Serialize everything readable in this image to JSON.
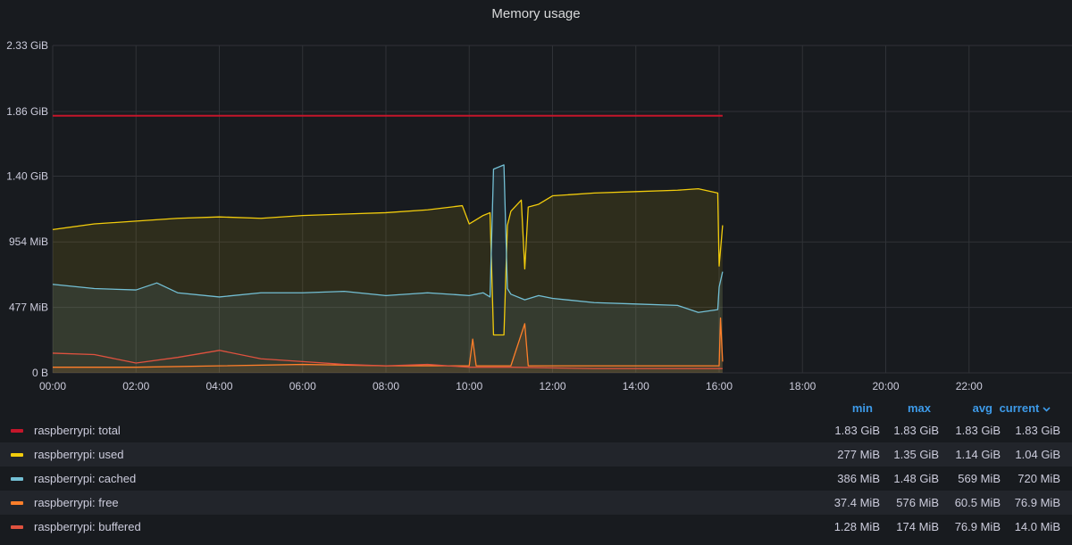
{
  "panel": {
    "title": "Memory usage"
  },
  "chart_data": {
    "type": "area",
    "title": "Memory usage",
    "x_domain": [
      "00:00",
      "24:00"
    ],
    "x_ticks": [
      "00:00",
      "02:00",
      "04:00",
      "06:00",
      "08:00",
      "10:00",
      "12:00",
      "14:00",
      "16:00",
      "18:00",
      "20:00",
      "22:00"
    ],
    "y_range_gib": [
      0,
      2.33
    ],
    "y_ticks": [
      {
        "value": 0,
        "label": "0 B"
      },
      {
        "value": 0.466,
        "label": "477 MiB"
      },
      {
        "value": 0.932,
        "label": "954 MiB"
      },
      {
        "value": 1.4,
        "label": "1.40 GiB"
      },
      {
        "value": 1.86,
        "label": "1.86 GiB"
      },
      {
        "value": 2.33,
        "label": "2.33 GiB"
      }
    ],
    "grid": true,
    "series": [
      {
        "name": "raspberrypi: total",
        "color": "#c4162a",
        "fill": false,
        "points": [
          [
            "00:00",
            1.83
          ],
          [
            "16:05",
            1.83
          ]
        ]
      },
      {
        "name": "raspberrypi: used",
        "color": "#f2cc0c",
        "fill": true,
        "points": [
          [
            "00:00",
            1.02
          ],
          [
            "01:00",
            1.06
          ],
          [
            "02:00",
            1.08
          ],
          [
            "03:00",
            1.1
          ],
          [
            "04:00",
            1.11
          ],
          [
            "05:00",
            1.1
          ],
          [
            "06:00",
            1.12
          ],
          [
            "07:00",
            1.13
          ],
          [
            "08:00",
            1.14
          ],
          [
            "09:00",
            1.16
          ],
          [
            "09:50",
            1.19
          ],
          [
            "10:00",
            1.06
          ],
          [
            "10:20",
            1.12
          ],
          [
            "10:30",
            1.14
          ],
          [
            "10:35",
            0.27
          ],
          [
            "10:50",
            0.27
          ],
          [
            "10:55",
            1.05
          ],
          [
            "11:00",
            1.15
          ],
          [
            "11:15",
            1.23
          ],
          [
            "11:20",
            0.74
          ],
          [
            "11:25",
            1.18
          ],
          [
            "11:40",
            1.2
          ],
          [
            "12:00",
            1.26
          ],
          [
            "13:00",
            1.28
          ],
          [
            "14:00",
            1.29
          ],
          [
            "15:00",
            1.3
          ],
          [
            "15:30",
            1.31
          ],
          [
            "15:58",
            1.28
          ],
          [
            "16:00",
            0.76
          ],
          [
            "16:05",
            1.05
          ]
        ]
      },
      {
        "name": "raspberrypi: cached",
        "color": "#73bfd4",
        "fill": true,
        "points": [
          [
            "00:00",
            0.63
          ],
          [
            "01:00",
            0.6
          ],
          [
            "02:00",
            0.59
          ],
          [
            "02:30",
            0.64
          ],
          [
            "03:00",
            0.57
          ],
          [
            "04:00",
            0.54
          ],
          [
            "05:00",
            0.57
          ],
          [
            "06:00",
            0.57
          ],
          [
            "07:00",
            0.58
          ],
          [
            "08:00",
            0.55
          ],
          [
            "09:00",
            0.57
          ],
          [
            "10:00",
            0.55
          ],
          [
            "10:20",
            0.57
          ],
          [
            "10:30",
            0.54
          ],
          [
            "10:35",
            1.45
          ],
          [
            "10:50",
            1.48
          ],
          [
            "10:55",
            0.6
          ],
          [
            "11:00",
            0.56
          ],
          [
            "11:20",
            0.52
          ],
          [
            "11:40",
            0.55
          ],
          [
            "12:00",
            0.53
          ],
          [
            "13:00",
            0.5
          ],
          [
            "14:00",
            0.49
          ],
          [
            "15:00",
            0.48
          ],
          [
            "15:30",
            0.43
          ],
          [
            "15:58",
            0.45
          ],
          [
            "16:00",
            0.61
          ],
          [
            "16:05",
            0.72
          ]
        ]
      },
      {
        "name": "raspberrypi: free",
        "color": "#ff7f2a",
        "fill": true,
        "points": [
          [
            "00:00",
            0.04
          ],
          [
            "02:00",
            0.04
          ],
          [
            "04:00",
            0.05
          ],
          [
            "06:00",
            0.06
          ],
          [
            "08:00",
            0.05
          ],
          [
            "10:00",
            0.05
          ],
          [
            "10:05",
            0.24
          ],
          [
            "10:10",
            0.05
          ],
          [
            "11:00",
            0.05
          ],
          [
            "11:20",
            0.35
          ],
          [
            "11:25",
            0.05
          ],
          [
            "13:00",
            0.05
          ],
          [
            "15:00",
            0.05
          ],
          [
            "16:00",
            0.05
          ],
          [
            "16:02",
            0.39
          ],
          [
            "16:05",
            0.08
          ]
        ]
      },
      {
        "name": "raspberrypi: buffered",
        "color": "#e0523f",
        "fill": false,
        "points": [
          [
            "00:00",
            0.14
          ],
          [
            "01:00",
            0.13
          ],
          [
            "02:00",
            0.07
          ],
          [
            "03:00",
            0.11
          ],
          [
            "04:00",
            0.16
          ],
          [
            "05:00",
            0.1
          ],
          [
            "06:00",
            0.08
          ],
          [
            "07:00",
            0.06
          ],
          [
            "08:00",
            0.05
          ],
          [
            "09:00",
            0.06
          ],
          [
            "10:00",
            0.04
          ],
          [
            "11:00",
            0.04
          ],
          [
            "13:00",
            0.03
          ],
          [
            "15:00",
            0.03
          ],
          [
            "16:00",
            0.03
          ],
          [
            "16:05",
            0.03
          ]
        ]
      }
    ]
  },
  "legend": {
    "headers": {
      "min": "min",
      "max": "max",
      "avg": "avg",
      "current": "current"
    },
    "current_sort_icon": "chevron-down-icon",
    "rows": [
      {
        "name": "raspberrypi: total",
        "color": "#c4162a",
        "min": "1.83 GiB",
        "max": "1.83 GiB",
        "avg": "1.83 GiB",
        "current": "1.83 GiB"
      },
      {
        "name": "raspberrypi: used",
        "color": "#f2cc0c",
        "min": "277 MiB",
        "max": "1.35 GiB",
        "avg": "1.14 GiB",
        "current": "1.04 GiB"
      },
      {
        "name": "raspberrypi: cached",
        "color": "#73bfd4",
        "min": "386 MiB",
        "max": "1.48 GiB",
        "avg": "569 MiB",
        "current": "720 MiB"
      },
      {
        "name": "raspberrypi: free",
        "color": "#ff7f2a",
        "min": "37.4 MiB",
        "max": "576 MiB",
        "avg": "60.5 MiB",
        "current": "76.9 MiB"
      },
      {
        "name": "raspberrypi: buffered",
        "color": "#e0523f",
        "min": "1.28 MiB",
        "max": "174 MiB",
        "avg": "76.9 MiB",
        "current": "14.0 MiB"
      }
    ]
  }
}
